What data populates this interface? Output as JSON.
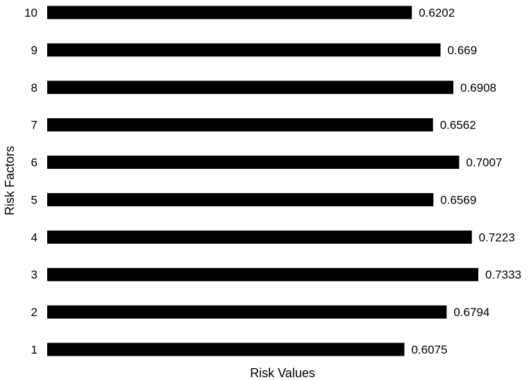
{
  "chart_data": {
    "type": "bar",
    "orientation": "horizontal",
    "title": "",
    "xlabel": "Risk Values",
    "ylabel": "Risk Factors",
    "categories": [
      "1",
      "2",
      "3",
      "4",
      "5",
      "6",
      "7",
      "8",
      "9",
      "10"
    ],
    "values": [
      0.6075,
      0.6794,
      0.7333,
      0.7223,
      0.6569,
      0.7007,
      0.6562,
      0.6908,
      0.669,
      0.6202
    ],
    "value_labels": [
      "0.6075",
      "0.6794",
      "0.7333",
      "0.7223",
      "0.6569",
      "0.7007",
      "0.6562",
      "0.6908",
      "0.669",
      "0.6202"
    ],
    "xlim": [
      0,
      0.7333
    ],
    "grid": false,
    "legend": "none",
    "bar_color": "#000000"
  }
}
